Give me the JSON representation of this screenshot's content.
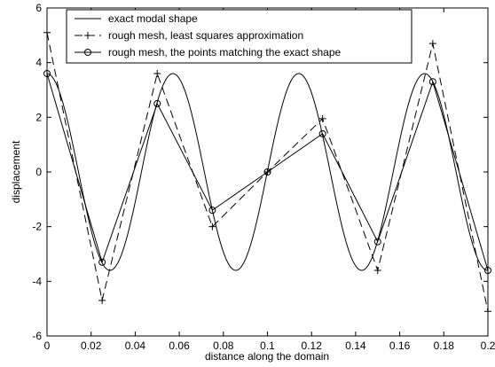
{
  "chart_data": {
    "type": "line",
    "title": "",
    "xlabel": "distance along the domain",
    "ylabel": "displacement",
    "xlim": [
      0,
      0.2
    ],
    "ylim": [
      -6,
      6
    ],
    "xticks": [
      0,
      0.02,
      0.04,
      0.06,
      0.08,
      0.1,
      0.12,
      0.14,
      0.16,
      0.18,
      0.2
    ],
    "xtick_labels": [
      "0",
      "0.02",
      "0.04",
      "0.06",
      "0.08",
      "0.1",
      "0.12",
      "0.14",
      "0.16",
      "0.18",
      "0.2"
    ],
    "yticks": [
      -6,
      -4,
      -2,
      0,
      2,
      4,
      6
    ],
    "ytick_labels": [
      "-6",
      "-4",
      "-2",
      "0",
      "2",
      "4",
      "6"
    ],
    "grid": false,
    "legend_position": "top-left",
    "series": [
      {
        "name": "exact modal shape",
        "style": "solid",
        "marker": "none",
        "function": "3.6*cos(2*pi*x/0.0571)",
        "x": [
          0,
          0.01,
          0.02,
          0.028,
          0.04,
          0.05,
          0.057,
          0.07,
          0.08,
          0.086,
          0.1,
          0.114,
          0.12,
          0.128,
          0.14,
          0.143,
          0.155,
          0.165,
          0.171,
          0.18,
          0.19,
          0.2
        ],
        "y": [
          3.6,
          1.84,
          -2.09,
          -3.59,
          -0.89,
          2.44,
          3.59,
          0.77,
          -2.36,
          -3.6,
          0.0,
          3.6,
          2.32,
          -0.79,
          -3.48,
          -3.6,
          -1.1,
          2.08,
          3.58,
          2.2,
          -1.7,
          -3.6
        ]
      },
      {
        "name": "rough mesh, least squares approximation",
        "style": "dashed",
        "marker": "+",
        "x": [
          0,
          0.025,
          0.05,
          0.075,
          0.1,
          0.125,
          0.15,
          0.175,
          0.2
        ],
        "y": [
          5.1,
          -4.7,
          3.6,
          -2.0,
          0.0,
          1.95,
          -3.6,
          4.7,
          -5.1
        ]
      },
      {
        "name": "rough mesh, the points matching the exact shape",
        "style": "solid",
        "marker": "o",
        "x": [
          0,
          0.025,
          0.05,
          0.075,
          0.1,
          0.125,
          0.15,
          0.175,
          0.2
        ],
        "y": [
          3.6,
          -3.3,
          2.5,
          -1.4,
          0.0,
          1.4,
          -2.55,
          3.3,
          -3.6
        ]
      }
    ]
  }
}
